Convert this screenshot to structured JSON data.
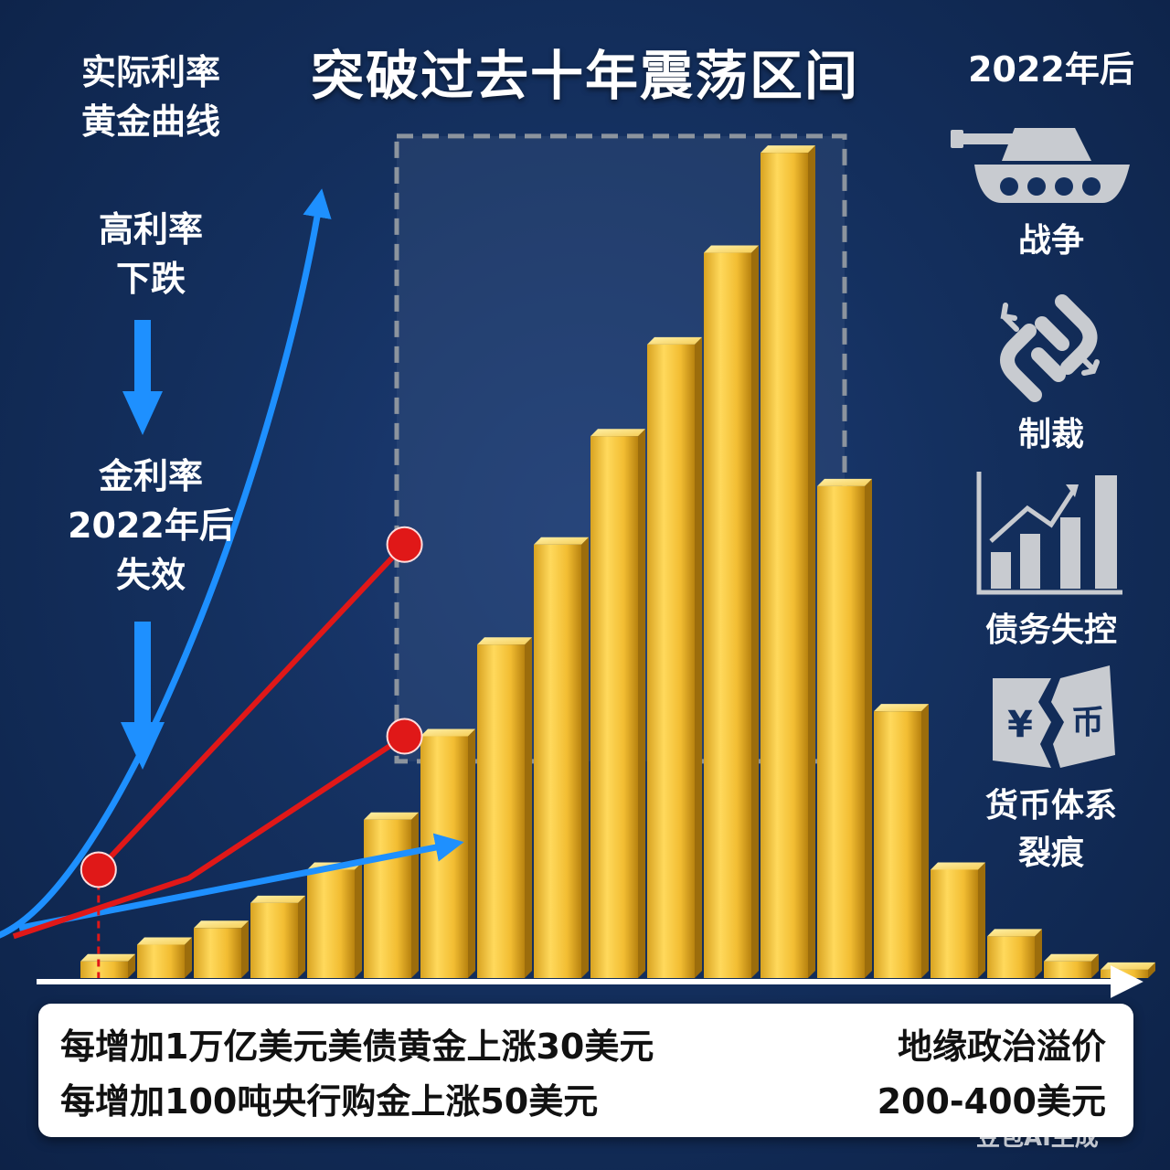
{
  "title": "突破过去十年震荡区间",
  "left_labels": {
    "legend": "实际利率\n黄金曲线",
    "high_rate": "高利率\n下跌",
    "gold_rate": "金利率\n2022年后\n失效"
  },
  "right_panel": {
    "header": "2022年后",
    "factors": [
      {
        "label": "战争",
        "icon": "tank-icon"
      },
      {
        "label": "制裁",
        "icon": "broken-chain-icon"
      },
      {
        "label": "债务失控",
        "icon": "rising-bar-chart-icon"
      },
      {
        "label": "货币体系\n裂痕",
        "icon": "cracked-currency-icon"
      }
    ],
    "currency_symbols": [
      "¥",
      "币"
    ]
  },
  "info_box": {
    "line1": "每增加1万亿美元美债黄金上涨30美元",
    "line2": "每增加100吨央行购金上涨50美元",
    "right1": "地缘政治溢价",
    "right2": "200-400美元"
  },
  "watermark": "豆包AI生成",
  "colors": {
    "background": "#14305f",
    "gold": "#e6b422",
    "blue_arrow": "#1e90ff",
    "red_line": "#e01818",
    "down_arrow": "#1e90ff",
    "range_box": "#8c949e",
    "icons": "#c8cbd0"
  },
  "chart_data": {
    "type": "bar",
    "title": "突破过去十年震荡区间",
    "xlabel": "",
    "ylabel": "",
    "ylim": [
      0,
      100
    ],
    "values": [
      2,
      4,
      6,
      9,
      13,
      19,
      29,
      40,
      52,
      65,
      76,
      87,
      99,
      59,
      32,
      13,
      5,
      2,
      1
    ],
    "range_box": {
      "low": 26,
      "high": 101,
      "from_bar": 6,
      "to_bar": 13
    },
    "red_line": {
      "points": [
        [
          -1.6,
          5
        ],
        [
          1.5,
          12
        ],
        [
          5.3,
          29
        ],
        [
          -0.1,
          13
        ],
        [
          5.3,
          52
        ]
      ],
      "markers": [
        [
          -0.1,
          13
        ],
        [
          5.3,
          29
        ],
        [
          5.3,
          52
        ]
      ]
    },
    "blue_curve": {
      "start": [
        -1.9,
        5
      ],
      "end": [
        3.8,
        93
      ]
    },
    "blue_arrow": {
      "start": [
        -1.5,
        6
      ],
      "end": [
        6.1,
        16
      ]
    },
    "dashed_marker_x": -0.1,
    "grid": false,
    "legend": "none"
  }
}
